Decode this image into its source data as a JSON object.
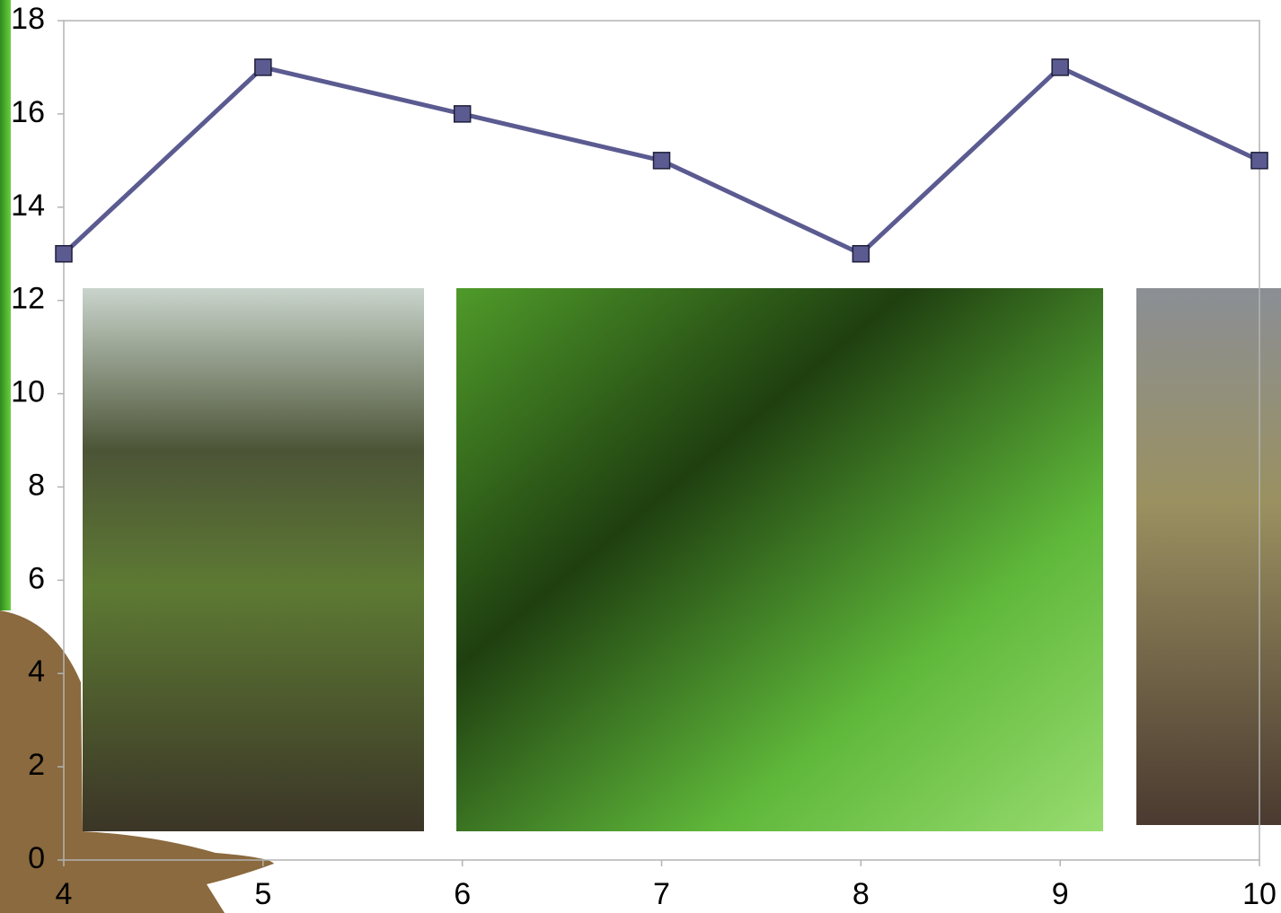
{
  "chart_data": {
    "type": "line",
    "x": [
      4,
      5,
      6,
      7,
      8,
      9,
      10
    ],
    "series": [
      {
        "color": "#5b5b91",
        "values": [
          13,
          17,
          16,
          15,
          13,
          17,
          15
        ]
      }
    ],
    "xlim": [
      4,
      10
    ],
    "xticks": [
      4,
      5,
      6,
      7,
      8,
      9,
      10
    ],
    "ylim": [
      0,
      18
    ],
    "yticks": [
      0,
      2,
      4,
      6,
      8,
      10,
      12,
      14,
      16,
      18
    ],
    "grid": false
  }
}
